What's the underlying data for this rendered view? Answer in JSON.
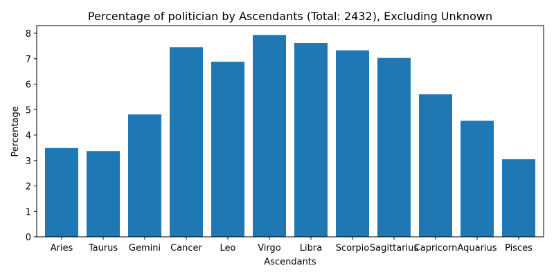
{
  "chart_data": {
    "type": "bar",
    "title": "Percentage of politician by Ascendants (Total: 2432), Excluding Unknown",
    "xlabel": "Ascendants",
    "ylabel": "Percentage",
    "categories": [
      "Aries",
      "Taurus",
      "Gemini",
      "Cancer",
      "Leo",
      "Virgo",
      "Libra",
      "Scorpio",
      "Sagittarius",
      "Capricorn",
      "Aquarius",
      "Pisces"
    ],
    "values": [
      3.49,
      3.37,
      4.81,
      7.45,
      6.88,
      7.93,
      7.62,
      7.33,
      7.03,
      5.6,
      4.56,
      3.05
    ],
    "ylim": [
      0,
      8.3
    ],
    "yticks": [
      "0",
      "1",
      "2",
      "3",
      "4",
      "5",
      "6",
      "7",
      "8"
    ],
    "grid": false,
    "bar_color": "#1f77b4"
  }
}
